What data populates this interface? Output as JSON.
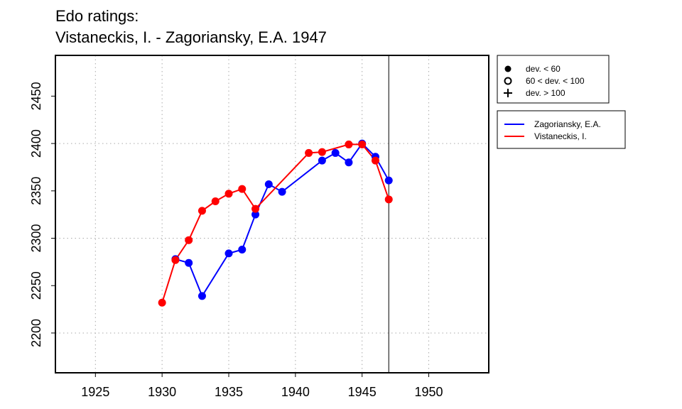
{
  "chart_data": {
    "type": "line",
    "title": "Edo ratings:",
    "subtitle": "Vistaneckis, I. - Zagoriansky, E.A. 1947",
    "xlabel": "",
    "ylabel": "",
    "xlim": [
      1922,
      1954.5
    ],
    "ylim": [
      2158,
      2493
    ],
    "xticks": [
      1925,
      1930,
      1935,
      1940,
      1945,
      1950
    ],
    "yticks": [
      2200,
      2250,
      2300,
      2350,
      2400,
      2450
    ],
    "grid": true,
    "reference_line_x": 1947,
    "series": [
      {
        "name": "Zagoriansky, E.A.",
        "color": "#0000ff",
        "x": [
          1931,
          1932,
          1933,
          1935,
          1936,
          1937,
          1938,
          1939,
          1942,
          1943,
          1944,
          1945,
          1946,
          1947
        ],
        "y": [
          2278,
          2274,
          2239,
          2284,
          2288,
          2325,
          2357,
          2349,
          2382,
          2390,
          2380,
          2400,
          2386,
          2361
        ]
      },
      {
        "name": "Vistaneckis, I.",
        "color": "#ff0000",
        "x": [
          1930,
          1931,
          1932,
          1933,
          1934,
          1935,
          1936,
          1937,
          1941,
          1942,
          1944,
          1945,
          1946,
          1947
        ],
        "y": [
          2232,
          2277,
          2298,
          2329,
          2339,
          2347,
          2352,
          2331,
          2390,
          2391,
          2399,
          2399,
          2382,
          2341
        ]
      }
    ],
    "symbol_legend": {
      "placement": "top-right",
      "entries": [
        {
          "symbol": "filled-circle",
          "label": "dev. < 60"
        },
        {
          "symbol": "open-circle",
          "label": "60 < dev. < 100"
        },
        {
          "symbol": "plus",
          "label": "dev. > 100"
        }
      ]
    },
    "series_legend": {
      "placement": "right"
    }
  }
}
